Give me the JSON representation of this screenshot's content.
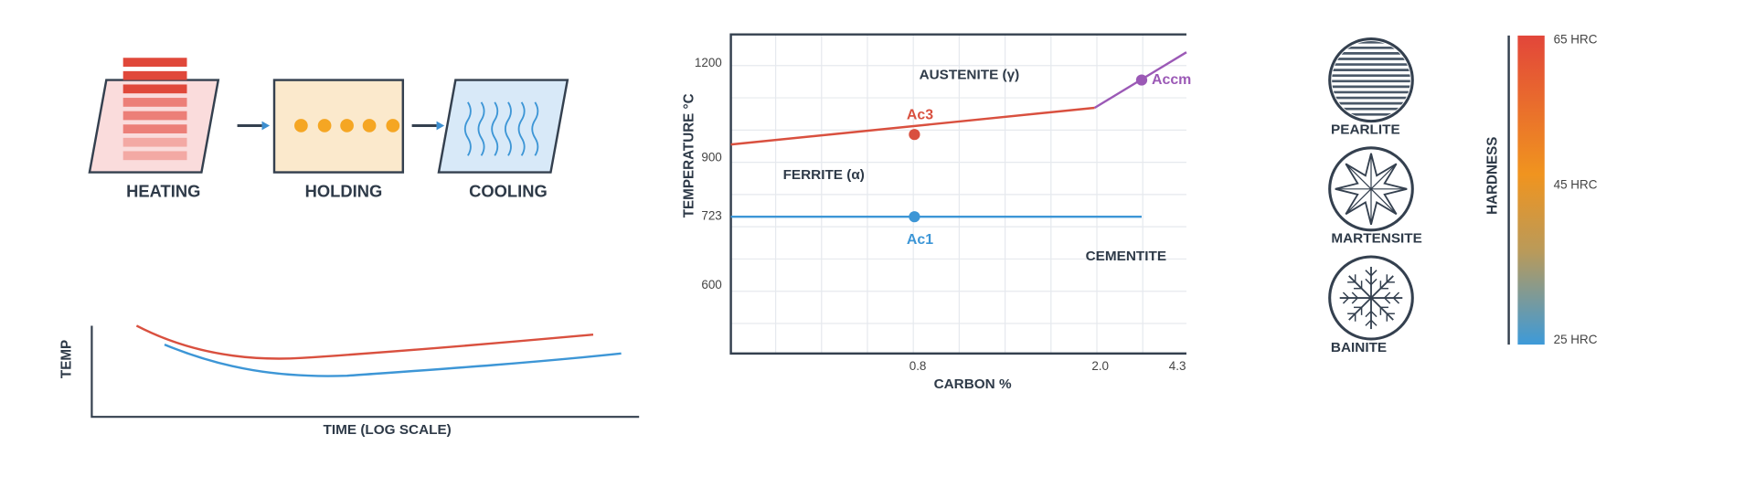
{
  "process": {
    "steps": [
      {
        "label": "HEATING"
      },
      {
        "label": "HOLDING"
      },
      {
        "label": "COOLING"
      }
    ]
  },
  "cooling_curve": {
    "y_label": "TEMP",
    "x_label": "TIME (LOG SCALE)"
  },
  "phase_diagram": {
    "y_label": "TEMPERATURE °C",
    "x_label": "CARBON %",
    "y_ticks": [
      "1200",
      "900",
      "723",
      "600"
    ],
    "x_ticks": [
      "0.8",
      "2.0",
      "4.3"
    ],
    "regions": [
      "AUSTENITE (γ)",
      "FERRITE (α)",
      "CEMENTITE"
    ],
    "lines": [
      "Ac3",
      "Ac1",
      "Accm"
    ]
  },
  "microstructures": [
    "PEARLITE",
    "MARTENSITE",
    "BAINITE"
  ],
  "hardness": {
    "label": "HARDNESS",
    "scale": [
      "65 HRC",
      "45 HRC",
      "25 HRC"
    ]
  }
}
